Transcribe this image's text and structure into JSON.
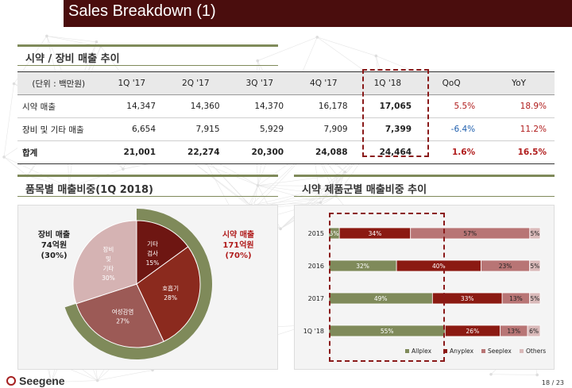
{
  "header": {
    "title": "Sales Breakdown (1)"
  },
  "section1": {
    "title": "시약 / 장비 매출 추이"
  },
  "table": {
    "headers": [
      "(단위 : 백만원)",
      "1Q '17",
      "2Q '17",
      "3Q '17",
      "4Q '17",
      "1Q '18",
      "QoQ",
      "YoY"
    ],
    "rows": [
      {
        "label": "시약 매출",
        "values": [
          "14,347",
          "14,360",
          "14,370",
          "16,178",
          "17,065",
          "5.5%",
          "18.9%"
        ]
      },
      {
        "label": "장비 및 기타 매출",
        "values": [
          "6,654",
          "7,915",
          "5,929",
          "7,909",
          "7,399",
          "-6.4%",
          "11.2%"
        ]
      },
      {
        "label": "합계",
        "values": [
          "21,001",
          "22,274",
          "20,300",
          "24,088",
          "24,464",
          "1.6%",
          "16.5%"
        ]
      }
    ]
  },
  "section2": {
    "title": "품목별 매출비중(1Q 2018)"
  },
  "section3": {
    "title": "시약 제품군별 매출비중 추이"
  },
  "pie_labels": {
    "left_title": "장비 매출",
    "left_amount": "74억원",
    "left_pct": "(30%)",
    "right_title": "시약 매출",
    "right_amount": "171억원",
    "right_pct": "(70%)"
  },
  "colors": {
    "title_bar": "#4a0d0d",
    "allplex": "#7f8a5a",
    "anyplex": "#8b1a12",
    "seeplex": "#b87575",
    "others": "#d9b9b9",
    "reagent_ring": "#7f8a5a",
    "equipment": "#d5b3b3"
  },
  "chart_data": [
    {
      "type": "pie",
      "slices": [
        {
          "label": "기타 검사",
          "value": 15,
          "display": "15%"
        },
        {
          "label": "호흡기",
          "value": 28,
          "display": "28%"
        },
        {
          "label": "여성감염",
          "value": 27,
          "display": "27%"
        },
        {
          "label": "장비 및 기타",
          "value": 30,
          "display": "30%"
        }
      ],
      "groups": [
        {
          "label": "시약 매출",
          "value": 70
        },
        {
          "label": "장비 매출",
          "value": 30
        }
      ]
    },
    {
      "type": "bar",
      "orientation": "horizontal",
      "stacked": true,
      "categories": [
        "2015",
        "2016",
        "2017",
        "1Q '18"
      ],
      "series": [
        {
          "name": "Allplex",
          "values": [
            5,
            32,
            49,
            55
          ]
        },
        {
          "name": "Anyplex",
          "values": [
            34,
            40,
            33,
            26
          ]
        },
        {
          "name": "Seeplex",
          "values": [
            57,
            23,
            13,
            13
          ]
        },
        {
          "name": "Others",
          "values": [
            5,
            5,
            5,
            6
          ]
        }
      ],
      "legend_position": "bottom"
    }
  ],
  "footer": {
    "logo": "Seegene",
    "page": "18 / 23"
  }
}
